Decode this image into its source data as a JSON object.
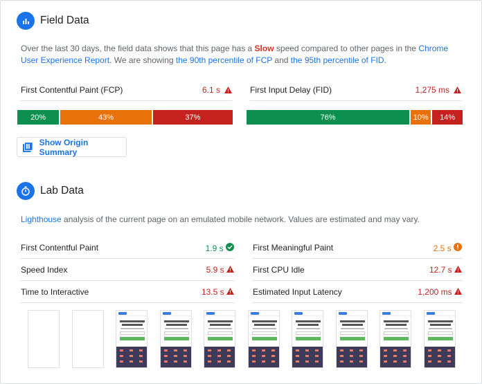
{
  "field": {
    "title": "Field Data",
    "desc_a": "Over the last 30 days, the field data shows that this page has a ",
    "desc_slow": "Slow",
    "desc_b": " speed compared to other pages in the ",
    "desc_link1": "Chrome User Experience Report",
    "desc_c": ". We are showing ",
    "desc_link2": "the 90th percentile of FCP",
    "desc_d": " and ",
    "desc_link3": "the 95th percentile of FID",
    "desc_e": ".",
    "metrics": [
      {
        "name": "First Contentful Paint (FCP)",
        "value": "6.1 s",
        "dist": [
          {
            "label": "20%",
            "pct": 20
          },
          {
            "label": "43%",
            "pct": 43
          },
          {
            "label": "37%",
            "pct": 37
          }
        ]
      },
      {
        "name": "First Input Delay (FID)",
        "value": "1,275 ms",
        "dist": [
          {
            "label": "76%",
            "pct": 76
          },
          {
            "label": "10%",
            "pct": 10
          },
          {
            "label": "14%",
            "pct": 14
          }
        ]
      }
    ],
    "origin_button": "Show Origin Summary"
  },
  "lab": {
    "title": "Lab Data",
    "desc_link": "Lighthouse",
    "desc_rest": " analysis of the current page on an emulated mobile network. Values are estimated and may vary.",
    "left": [
      {
        "name": "First Contentful Paint",
        "value": "1.9 s",
        "status": "pass"
      },
      {
        "name": "Speed Index",
        "value": "5.9 s",
        "status": "fail"
      },
      {
        "name": "Time to Interactive",
        "value": "13.5 s",
        "status": "fail"
      }
    ],
    "right": [
      {
        "name": "First Meaningful Paint",
        "value": "2.5 s",
        "status": "average"
      },
      {
        "name": "First CPU Idle",
        "value": "12.7 s",
        "status": "fail"
      },
      {
        "name": "Estimated Input Latency",
        "value": "1,200 ms",
        "status": "fail"
      }
    ],
    "frames": [
      "blank",
      "blank",
      "loaded",
      "loaded",
      "loaded",
      "loaded",
      "loaded",
      "loaded",
      "loaded",
      "loaded"
    ]
  },
  "colors": {
    "fast": "#0d904f",
    "average": "#e8710a",
    "slow": "#c5221f",
    "link": "#1a73e8"
  }
}
